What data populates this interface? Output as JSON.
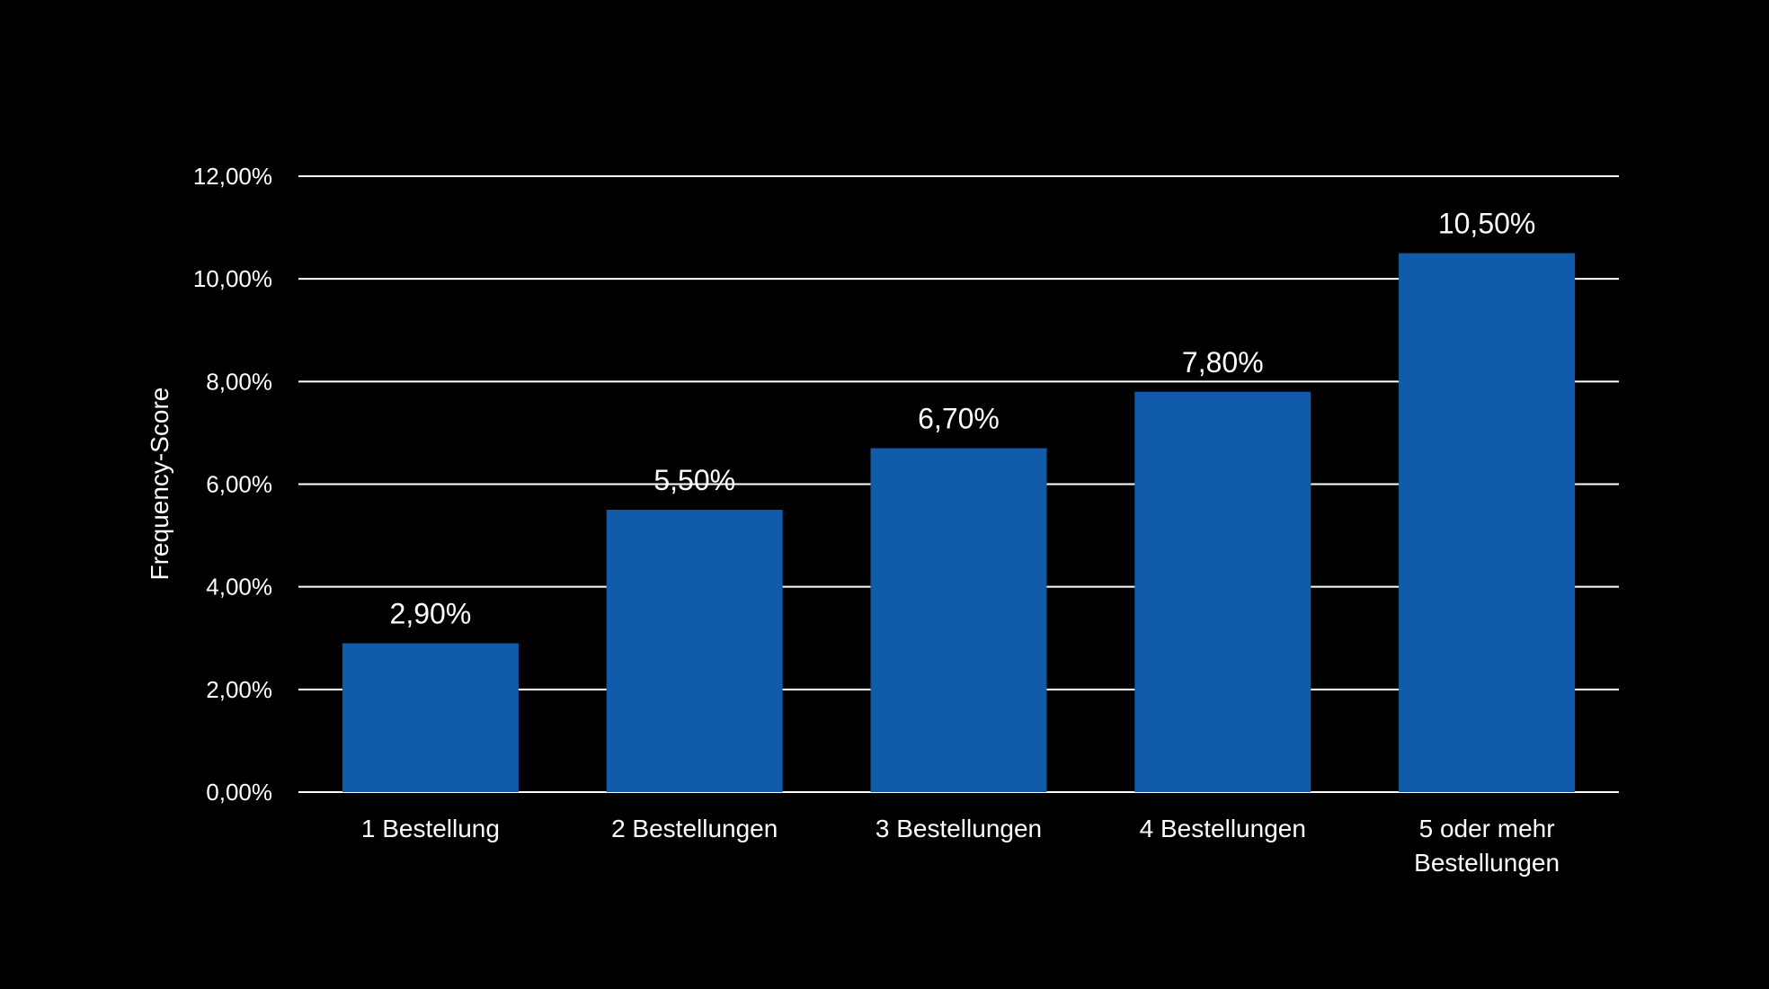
{
  "chart_data": {
    "type": "bar",
    "categories": [
      [
        "1 Bestellung"
      ],
      [
        "2 Bestellungen"
      ],
      [
        "3 Bestellungen"
      ],
      [
        "4 Bestellungen"
      ],
      [
        "5 oder mehr",
        "Bestellungen"
      ]
    ],
    "values": [
      2.9,
      5.5,
      6.7,
      7.8,
      10.5
    ],
    "data_labels": [
      "2,90%",
      "5,50%",
      "6,70%",
      "7,80%",
      "10,50%"
    ],
    "ylabel": "Frequency-Score",
    "xlabel": "",
    "title": "",
    "ylim": [
      0,
      12
    ],
    "yticks": [
      0,
      2,
      4,
      6,
      8,
      10,
      12
    ],
    "ytick_labels": [
      "0,00%",
      "2,00%",
      "4,00%",
      "6,00%",
      "8,00%",
      "10,00%",
      "12,00%"
    ],
    "grid": true,
    "legend": "none",
    "colors": {
      "background": "#000000",
      "bar": "#115CAA",
      "text": "#FFFFFF",
      "grid": "#FFFFFF"
    }
  }
}
